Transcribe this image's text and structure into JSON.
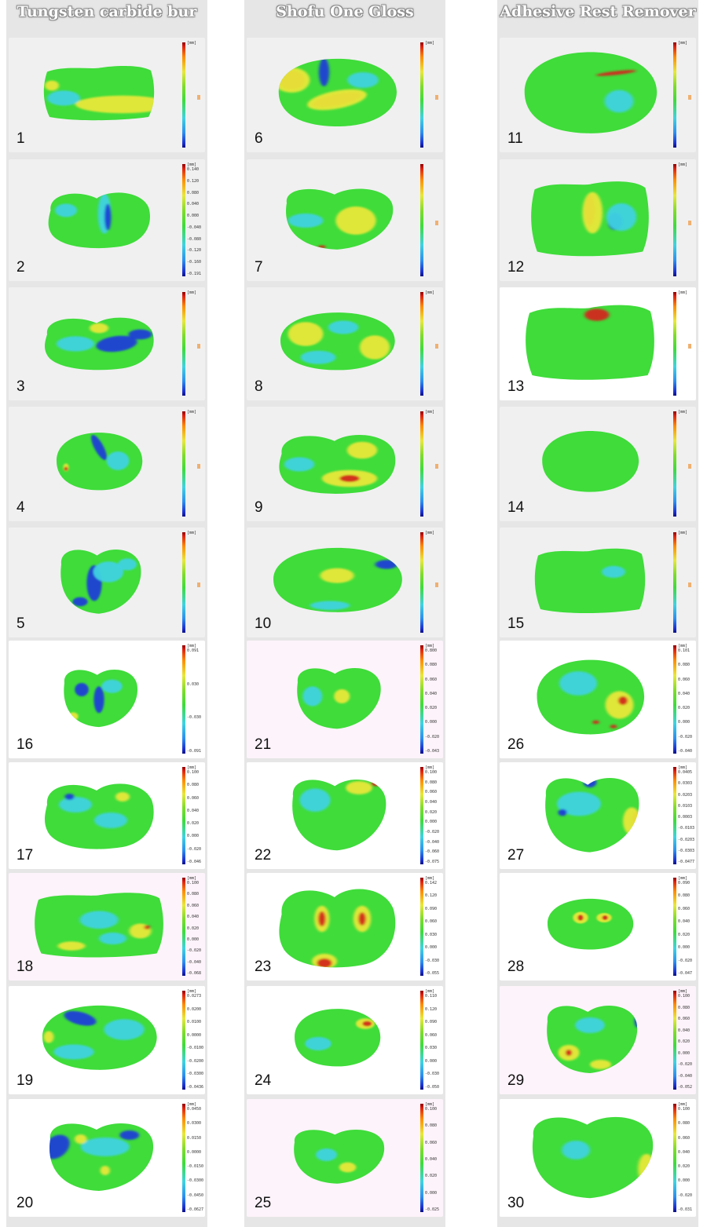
{
  "columns": [
    {
      "title": "Tungsten carbide bur",
      "panels": [
        {
          "number": "1",
          "bg": "#f0f0f0",
          "ticks": [
            "[mm]"
          ]
        },
        {
          "number": "2",
          "bg": "#f0f0f0",
          "ticks": [
            "[mm]",
            "0.140",
            "0.120",
            "0.080",
            "0.040",
            "0.000",
            "-0.040",
            "-0.080",
            "-0.120",
            "-0.160",
            "-0.191"
          ]
        },
        {
          "number": "3",
          "bg": "#f0f0f0",
          "ticks": [
            "[mm]"
          ]
        },
        {
          "number": "4",
          "bg": "#f0f0f0",
          "ticks": [
            "[mm]"
          ]
        },
        {
          "number": "5",
          "bg": "#f0f0f0",
          "ticks": [
            "[mm]"
          ]
        },
        {
          "number": "16",
          "bg": "#ffffff",
          "ticks": [
            "[mm]",
            "0.091",
            "0.030",
            "-0.030",
            "-0.091"
          ]
        },
        {
          "number": "17",
          "bg": "#ffffff",
          "ticks": [
            "[mm]",
            "0.100",
            "0.080",
            "0.060",
            "0.040",
            "0.020",
            "0.000",
            "-0.020",
            "-0.046"
          ]
        },
        {
          "number": "18",
          "bg": "#fdf3fa",
          "ticks": [
            "[mm]",
            "0.100",
            "0.080",
            "0.060",
            "0.040",
            "0.020",
            "0.000",
            "-0.020",
            "-0.040",
            "-0.068"
          ]
        },
        {
          "number": "19",
          "bg": "#ffffff",
          "ticks": [
            "[mm]",
            "0.0273",
            "0.0200",
            "0.0100",
            "0.0000",
            "-0.0100",
            "-0.0200",
            "-0.0300",
            "-0.0436"
          ]
        },
        {
          "number": "20",
          "bg": "#ffffff",
          "ticks": [
            "[mm]",
            "0.0450",
            "0.0300",
            "0.0150",
            "0.0000",
            "-0.0150",
            "-0.0300",
            "-0.0450",
            "-0.0627"
          ]
        }
      ]
    },
    {
      "title": "Shofu One Gloss",
      "panels": [
        {
          "number": "6",
          "bg": "#f0f0f0",
          "ticks": [
            "[mm]"
          ]
        },
        {
          "number": "7",
          "bg": "#f0f0f0",
          "ticks": []
        },
        {
          "number": "8",
          "bg": "#f0f0f0",
          "ticks": [
            "[mm]"
          ]
        },
        {
          "number": "9",
          "bg": "#f0f0f0",
          "ticks": [
            "[mm]"
          ]
        },
        {
          "number": "10",
          "bg": "#f0f0f0",
          "ticks": [
            "[mm]"
          ]
        },
        {
          "number": "21",
          "bg": "#fdf3fa",
          "ticks": [
            "[mm]",
            "0.800",
            "0.080",
            "0.060",
            "0.040",
            "0.020",
            "0.000",
            "-0.020",
            "-0.043"
          ]
        },
        {
          "number": "22",
          "bg": "#ffffff",
          "ticks": [
            "[mm]",
            "0.100",
            "0.080",
            "0.060",
            "0.040",
            "0.020",
            "0.000",
            "-0.020",
            "-0.040",
            "-0.060",
            "-0.075"
          ]
        },
        {
          "number": "23",
          "bg": "#ffffff",
          "ticks": [
            "[mm]",
            "0.142",
            "0.120",
            "0.090",
            "0.060",
            "0.030",
            "0.000",
            "-0.030",
            "-0.055"
          ]
        },
        {
          "number": "24",
          "bg": "#ffffff",
          "ticks": [
            "[mm]",
            "0.110",
            "0.120",
            "0.090",
            "0.060",
            "0.030",
            "0.000",
            "-0.030",
            "-0.050"
          ]
        },
        {
          "number": "25",
          "bg": "#fdf3fa",
          "ticks": [
            "[mm]",
            "0.100",
            "0.080",
            "0.060",
            "0.040",
            "0.020",
            "0.000",
            "-0.025"
          ]
        }
      ]
    },
    {
      "title": "Adhesive Rest Remover",
      "panels": [
        {
          "number": "11",
          "bg": "#f0f0f0",
          "ticks": [
            "[mm]"
          ]
        },
        {
          "number": "12",
          "bg": "#f0f0f0",
          "ticks": [
            "[mm]"
          ]
        },
        {
          "number": "13",
          "bg": "#ffffff",
          "ticks": [
            "[mm]"
          ]
        },
        {
          "number": "14",
          "bg": "#f0f0f0",
          "ticks": [
            "[mm]"
          ]
        },
        {
          "number": "15",
          "bg": "#f0f0f0",
          "ticks": [
            "[mm]"
          ]
        },
        {
          "number": "26",
          "bg": "#ffffff",
          "ticks": [
            "[mm]",
            "0.101",
            "0.080",
            "0.060",
            "0.040",
            "0.020",
            "0.000",
            "-0.020",
            "-0.040"
          ]
        },
        {
          "number": "27",
          "bg": "#ffffff",
          "ticks": [
            "[mm]",
            "0.0405",
            "0.0303",
            "0.0203",
            "0.0103",
            "0.0003",
            "-0.0103",
            "-0.0203",
            "-0.0303",
            "-0.0477"
          ]
        },
        {
          "number": "28",
          "bg": "#ffffff",
          "ticks": [
            "[mm]",
            "0.090",
            "0.080",
            "0.060",
            "0.040",
            "0.020",
            "0.000",
            "-0.020",
            "-0.047"
          ]
        },
        {
          "number": "29",
          "bg": "#fdf3fa",
          "ticks": [
            "[mm]",
            "0.100",
            "0.080",
            "0.060",
            "0.040",
            "0.020",
            "0.000",
            "-0.020",
            "-0.040",
            "-0.052"
          ]
        },
        {
          "number": "30",
          "bg": "#ffffff",
          "ticks": [
            "[mm]",
            "0.100",
            "0.080",
            "0.060",
            "0.040",
            "0.020",
            "0.000",
            "-0.020",
            "-0.031"
          ]
        }
      ]
    }
  ],
  "colors": {
    "green": "#3fdc3a",
    "cyan": "#3fd3e0",
    "blue": "#1a3fd6",
    "yellow": "#e8e83a",
    "red": "#d2261a"
  }
}
